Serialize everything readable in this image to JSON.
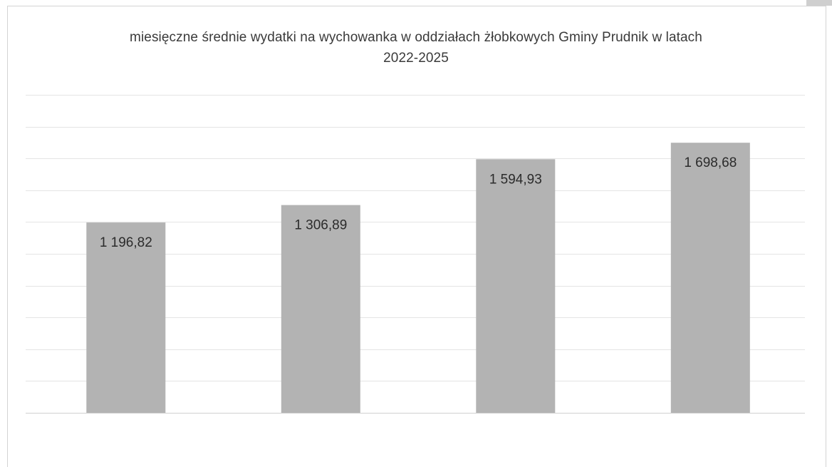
{
  "chart_data": {
    "type": "bar",
    "title": "miesięczne średnie wydatki na wychowanka w oddziałach żłobkowych Gminy Prudnik w latach 2022-2025",
    "title_lines": [
      "miesięczne średnie wydatki na wychowanka w oddziałach żłobkowych Gminy Prudnik w latach",
      "2022-2025"
    ],
    "categories": [
      "",
      "",
      "",
      ""
    ],
    "values": [
      1196.82,
      1306.89,
      1594.93,
      1698.68
    ],
    "data_labels": [
      "1 196,82",
      "1 306,89",
      "1 594,93",
      "1 698,68"
    ],
    "xlabel": "",
    "ylabel": "",
    "ylim": [
      0,
      2000
    ],
    "grid": true,
    "legend": "none",
    "bar_color": "#b3b3b3",
    "grid_color": "#e4e4e4"
  }
}
